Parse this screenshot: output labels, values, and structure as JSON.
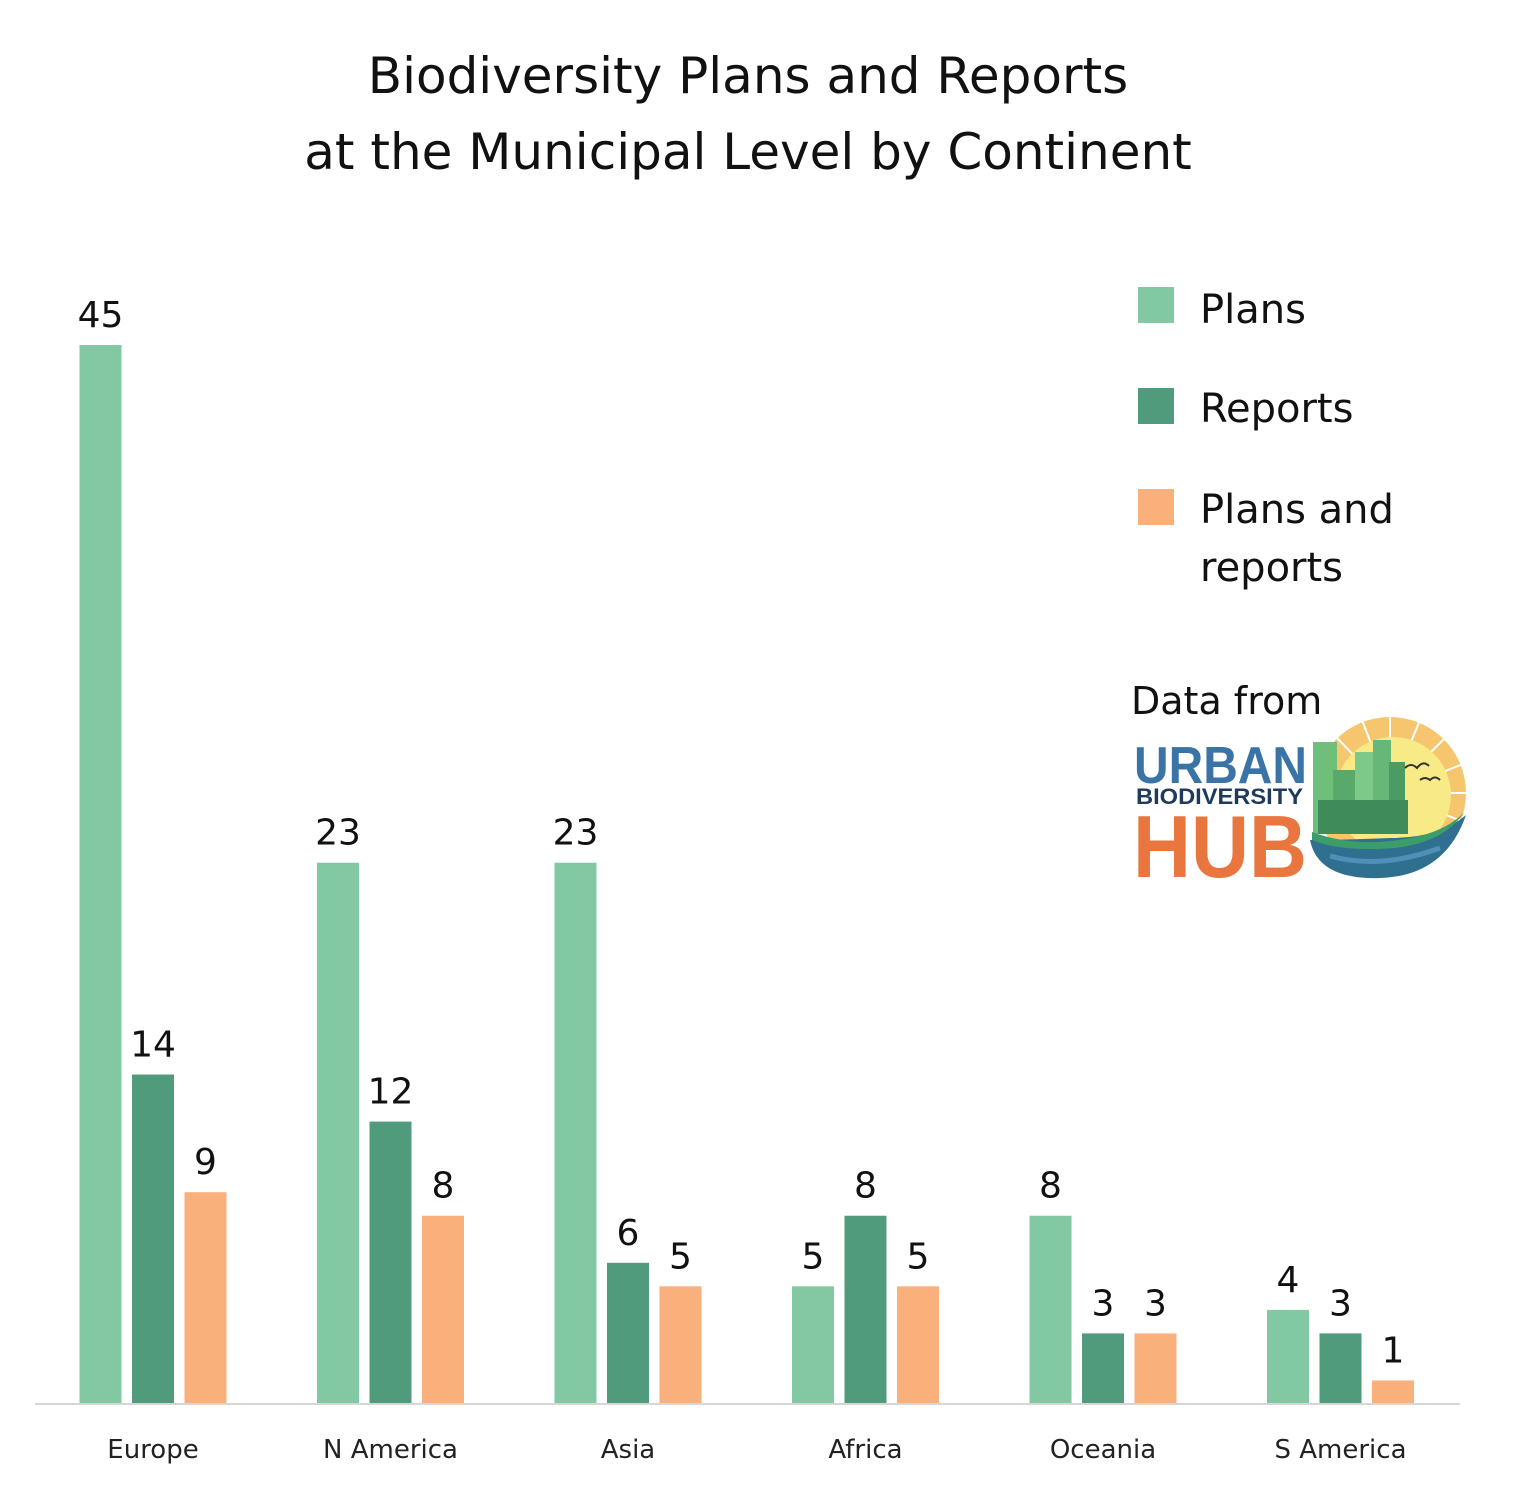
{
  "chart_data": {
    "type": "bar",
    "title": [
      "Biodiversity Plans and Reports",
      "at the Municipal Level by Continent"
    ],
    "xlabel": "",
    "ylabel": "",
    "ylim": [
      0,
      45
    ],
    "grid": false,
    "categories": [
      "Europe",
      "N America",
      "Asia",
      "Africa",
      "Oceania",
      "S America"
    ],
    "series": [
      {
        "name": "Plans",
        "color": "#82c8a2",
        "values": [
          45,
          23,
          23,
          5,
          8,
          4
        ]
      },
      {
        "name": "Reports",
        "color": "#4f9b7b",
        "values": [
          14,
          12,
          6,
          8,
          3,
          3
        ]
      },
      {
        "name": "Plans and reports",
        "name_lines": [
          "Plans and",
          "reports"
        ],
        "color": "#f9b07a",
        "values": [
          9,
          8,
          5,
          5,
          3,
          1
        ]
      }
    ],
    "legend_position": "top-right",
    "data_labels": true
  },
  "source": {
    "prefix": "Data from",
    "logo": {
      "line1": "URBAN",
      "line2": "BIODIVERSITY",
      "line3": "HUB",
      "icon": "city-sun-globe-icon"
    }
  }
}
